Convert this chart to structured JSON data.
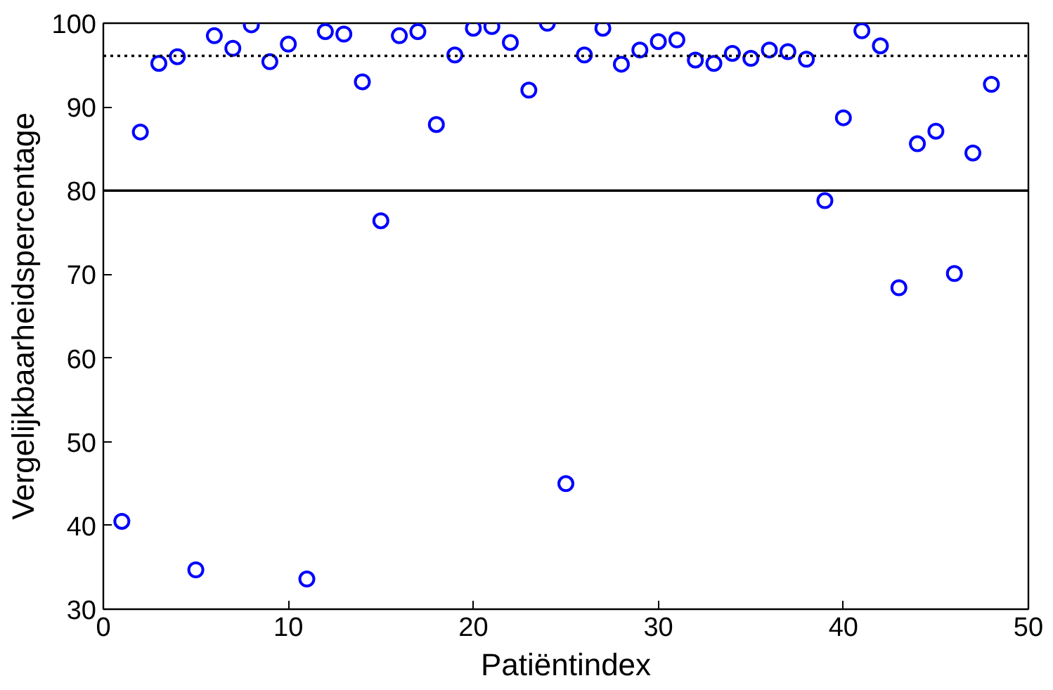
{
  "chart_data": {
    "type": "scatter",
    "xlabel": "Patiëntindex",
    "ylabel": "Vergelijkbaarheidspercentage",
    "x": [
      1,
      2,
      3,
      4,
      5,
      6,
      7,
      8,
      9,
      10,
      11,
      12,
      13,
      14,
      15,
      16,
      17,
      18,
      19,
      20,
      21,
      22,
      23,
      24,
      25,
      26,
      27,
      28,
      29,
      30,
      31,
      32,
      33,
      34,
      35,
      36,
      37,
      38,
      39,
      40,
      41,
      42,
      43,
      44,
      45,
      46,
      47,
      48
    ],
    "series": [
      {
        "color": "#0000ff",
        "values": [
          40.5,
          87,
          95.2,
          96,
          34.7,
          98.5,
          97,
          99.8,
          95.4,
          97.5,
          33.6,
          99,
          98.7,
          93,
          76.4,
          98.5,
          99,
          87.9,
          96.2,
          99.4,
          99.6,
          97.7,
          92,
          100,
          45,
          96.2,
          99.4,
          95.1,
          96.8,
          97.8,
          98,
          95.6,
          95.2,
          96.4,
          95.8,
          96.8,
          96.6,
          95.7,
          78.8,
          88.7,
          99.1,
          97.3,
          68.4,
          85.6,
          87.1,
          70.1,
          84.5,
          92.7
        ]
      }
    ],
    "marker": "circle",
    "xlim": [
      0,
      50
    ],
    "ylim": [
      30,
      100
    ],
    "xticks": [
      0,
      10,
      20,
      30,
      40,
      50
    ],
    "yticks": [
      30,
      40,
      50,
      60,
      70,
      80,
      90,
      100
    ],
    "ref_lines": [
      {
        "axis": "y",
        "value": 80,
        "line_style": "solid",
        "color": "#000000"
      },
      {
        "axis": "y",
        "value": 96.1,
        "line_style": "dotted",
        "color": "#000000"
      }
    ],
    "line_style": "none"
  }
}
